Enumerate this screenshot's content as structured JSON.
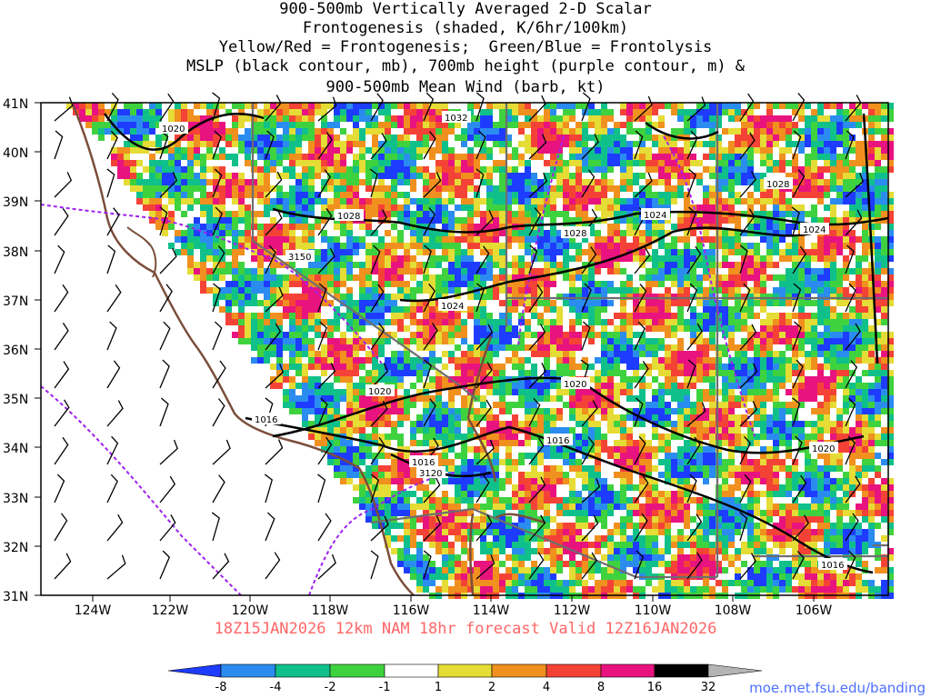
{
  "title_lines": [
    "900-500mb Vertically Averaged 2-D Scalar",
    "Frontogenesis (shaded, K/6hr/100km)",
    "Yellow/Red = Frontogenesis;  Green/Blue = Frontolysis",
    "MSLP (black contour, mb), 700mb height (purple contour, m) &",
    "900-500mb Mean Wind (barb, kt)"
  ],
  "lat_labels": [
    "41N",
    "40N",
    "39N",
    "38N",
    "37N",
    "36N",
    "35N",
    "34N",
    "33N",
    "32N",
    "31N"
  ],
  "lon_labels": [
    "124W",
    "122W",
    "120W",
    "118W",
    "116W",
    "114W",
    "112W",
    "110W",
    "108W",
    "106W"
  ],
  "valid_text": "18Z15JAN2026 12km NAM 18hr forecast Valid 12Z16JAN2026",
  "credit": "moe.met.fsu.edu/banding",
  "colorbar": {
    "labels": [
      "-8",
      "-4",
      "-2",
      "-1",
      "1",
      "2",
      "4",
      "8",
      "16",
      "32"
    ],
    "colors": [
      "#1e3cff",
      "#2b8cf0",
      "#10c08a",
      "#3fd23f",
      "#ffffff",
      "#e5dc35",
      "#f0901e",
      "#f44336",
      "#e8137f",
      "#000000",
      "#b4b4b4"
    ]
  },
  "contour_labels": {
    "mslp": [
      "1020",
      "1032",
      "1028",
      "1028",
      "1024",
      "1028",
      "1024",
      "1024",
      "1020",
      "1020",
      "1016",
      "1016",
      "1016",
      "1020",
      "1016"
    ],
    "height": [
      "3150",
      "3120"
    ]
  }
}
